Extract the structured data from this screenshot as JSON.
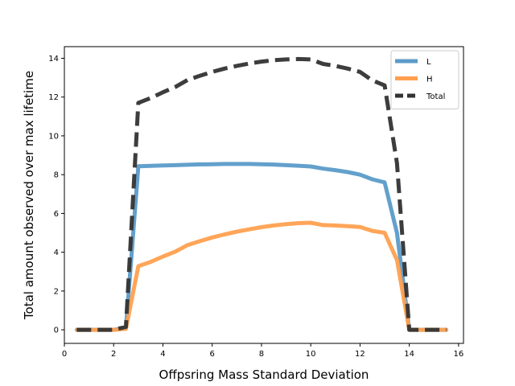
{
  "chart_data": {
    "type": "line",
    "title": "",
    "xlabel": "Offpsring Mass Standard Deviation",
    "ylabel": "Total amount observed over max lifetime",
    "xlim": [
      0,
      16.2
    ],
    "ylim": [
      -0.7,
      14.6
    ],
    "xticks": [
      0,
      2,
      4,
      6,
      8,
      10,
      12,
      14,
      16
    ],
    "yticks": [
      0,
      2,
      4,
      6,
      8,
      10,
      12,
      14
    ],
    "grid": false,
    "legend_position": "top-right",
    "x": [
      0.5,
      1.0,
      1.5,
      2.0,
      2.5,
      3.0,
      3.5,
      4.0,
      4.5,
      5.0,
      5.5,
      6.0,
      6.5,
      7.0,
      7.5,
      8.0,
      8.5,
      9.0,
      9.5,
      10.0,
      10.5,
      11.0,
      11.5,
      12.0,
      12.5,
      13.0,
      13.5,
      14.0,
      14.5,
      15.0,
      15.5
    ],
    "series": [
      {
        "name": "L",
        "color": "#5b9bc9",
        "style": "solid",
        "values": [
          0.0,
          0.0,
          0.0,
          0.0,
          0.1,
          8.43,
          8.45,
          8.47,
          8.49,
          8.51,
          8.53,
          8.54,
          8.55,
          8.55,
          8.55,
          8.54,
          8.52,
          8.49,
          8.46,
          8.42,
          8.31,
          8.23,
          8.13,
          8.0,
          7.76,
          7.6,
          5.0,
          0.0,
          0.0,
          0.0,
          0.0
        ]
      },
      {
        "name": "H",
        "color": "#ffa04f",
        "style": "solid",
        "values": [
          0.0,
          0.0,
          0.0,
          0.0,
          0.05,
          3.28,
          3.5,
          3.78,
          4.03,
          4.37,
          4.57,
          4.76,
          4.92,
          5.06,
          5.18,
          5.29,
          5.38,
          5.45,
          5.5,
          5.52,
          5.4,
          5.38,
          5.34,
          5.3,
          5.1,
          5.0,
          3.6,
          0.0,
          0.0,
          0.0,
          0.0
        ]
      },
      {
        "name": "Total",
        "color": "#333333",
        "style": "dashed",
        "values": [
          0.0,
          0.0,
          0.0,
          0.0,
          0.15,
          11.7,
          11.95,
          12.25,
          12.52,
          12.88,
          13.1,
          13.3,
          13.47,
          13.61,
          13.73,
          13.83,
          13.9,
          13.94,
          13.96,
          13.94,
          13.71,
          13.61,
          13.47,
          13.3,
          12.86,
          12.6,
          8.6,
          0.0,
          0.0,
          0.0,
          0.0
        ]
      }
    ]
  }
}
